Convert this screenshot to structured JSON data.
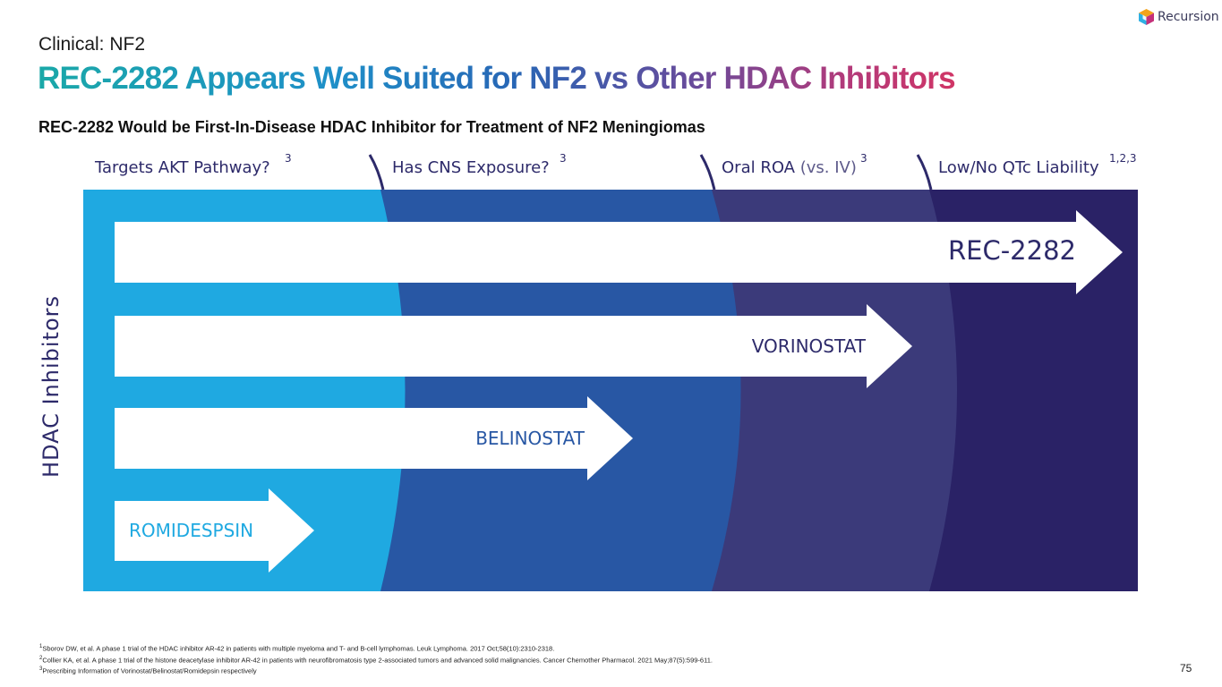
{
  "brand": {
    "name": "Recursion",
    "icon": "hexagon-logo-icon"
  },
  "section_label": "Clinical: NF2",
  "title": "REC-2282 Appears Well Suited for NF2 vs Other HDAC Inhibitors",
  "subtitle": "REC-2282 Would be First-In-Disease HDAC Inhibitor for Treatment of NF2 Meningiomas",
  "criteria": [
    {
      "label": "Targets AKT Pathway?",
      "muted": "",
      "ref": "3"
    },
    {
      "label": "Has CNS Exposure?",
      "muted": "",
      "ref": "3"
    },
    {
      "label": "Oral ROA ",
      "muted": "(vs. IV)",
      "ref": "3"
    },
    {
      "label": "Low/No QTc Liability",
      "muted": "",
      "ref": "1,2,3"
    }
  ],
  "axis_label": "HDAC Inhibitors",
  "drugs": [
    {
      "name": "REC-2282",
      "criteria_met": 4
    },
    {
      "name": "VORINOSTAT",
      "criteria_met": 3
    },
    {
      "name": "BELINOSTAT",
      "criteria_met": 2
    },
    {
      "name": "ROMIDESPSIN",
      "criteria_met": 1
    }
  ],
  "colors": {
    "band1": "#1fa9e1",
    "band2": "#2857a4",
    "band3": "#3b3a7a",
    "band4": "#2a2266",
    "arrow": "#ffffff",
    "drug_text_dark": "#2d2a6a",
    "drug_text_mid": "#2857a4",
    "drug_text_light": "#1fa9e1"
  },
  "footnotes": [
    {
      "num": "1",
      "text": "Sborov DW, et al. A phase 1 trial of the HDAC inhibitor AR-42 in patients with multiple myeloma and T- and B-cell lymphomas. Leuk Lymphoma. 2017 Oct;58(10):2310-2318."
    },
    {
      "num": "2",
      "text": "Collier KA, et al. A phase 1 trial of the histone deacetylase inhibitor AR-42 in patients with neurofibromatosis type 2-associated tumors and advanced solid malignancies. Cancer Chemother Pharmacol. 2021 May;87(5):599-611."
    },
    {
      "num": "3",
      "text": "Prescribing Information of Vorinostat/Belinostat/Romidepsin respectively"
    }
  ],
  "page_number": "75"
}
